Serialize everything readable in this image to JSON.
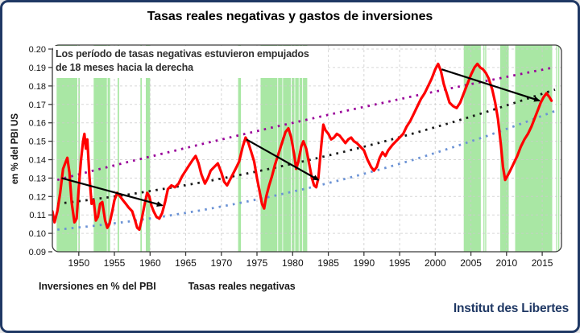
{
  "title": "Tasas reales negativas y gastos de inversiones",
  "annotation": {
    "line1": "Los período de tasas negativas estuvieron empujados",
    "line2": "de 18 meses hacia la derecha"
  },
  "brand": "Institut des Libertes",
  "legend": [
    {
      "label": "Inversiones en % del PBI",
      "color": "#FF0000",
      "type": "line"
    },
    {
      "label": "Tasas reales negativas",
      "color": "#A9E7A4",
      "type": "box"
    }
  ],
  "colors": {
    "investment_line": "#FF0000",
    "band_green": "#A9E7A4",
    "trend_purple": "#990099",
    "trend_black": "#1a1a1a",
    "trend_blue": "#6C93D5",
    "grid": "#cccccc",
    "frame": "#3a3a3a",
    "navy": "#1F3864"
  },
  "chart_data": {
    "type": "line",
    "title": "Tasas reales negativas y gastos de inversiones",
    "xlabel": "",
    "ylabel": "en % del PBI US",
    "xlim": [
      1946.3,
      2017.7
    ],
    "ylim": [
      0.09,
      0.2022
    ],
    "xticks": [
      1950,
      1955,
      1960,
      1965,
      1970,
      1975,
      1980,
      1985,
      1990,
      1995,
      2000,
      2005,
      2010,
      2015
    ],
    "yticks": [
      0.09,
      0.1,
      0.11,
      0.12,
      0.13,
      0.14,
      0.15,
      0.16,
      0.17,
      0.18,
      0.19,
      0.2
    ],
    "grid": true,
    "legend_position": "bottom-left",
    "series": [
      {
        "name": "Inversiones en % del PBI",
        "color": "#FF0000",
        "points": [
          [
            1946.3,
            0.112
          ],
          [
            1946.6,
            0.106
          ],
          [
            1947.0,
            0.112
          ],
          [
            1947.4,
            0.122
          ],
          [
            1947.8,
            0.135
          ],
          [
            1948.1,
            0.138
          ],
          [
            1948.4,
            0.141
          ],
          [
            1948.7,
            0.133
          ],
          [
            1949.0,
            0.117
          ],
          [
            1949.4,
            0.106
          ],
          [
            1949.7,
            0.108
          ],
          [
            1950.0,
            0.125
          ],
          [
            1950.3,
            0.139
          ],
          [
            1950.6,
            0.15
          ],
          [
            1950.8,
            0.154
          ],
          [
            1951.0,
            0.146
          ],
          [
            1951.2,
            0.151
          ],
          [
            1951.5,
            0.131
          ],
          [
            1951.8,
            0.116
          ],
          [
            1952.1,
            0.118
          ],
          [
            1952.4,
            0.107
          ],
          [
            1952.7,
            0.109
          ],
          [
            1953.0,
            0.116
          ],
          [
            1953.3,
            0.117
          ],
          [
            1953.7,
            0.107
          ],
          [
            1954.0,
            0.103
          ],
          [
            1954.3,
            0.105
          ],
          [
            1954.7,
            0.112
          ],
          [
            1955.0,
            0.118
          ],
          [
            1955.4,
            0.122
          ],
          [
            1955.8,
            0.12
          ],
          [
            1956.2,
            0.118
          ],
          [
            1956.6,
            0.116
          ],
          [
            1957.0,
            0.114
          ],
          [
            1957.5,
            0.112
          ],
          [
            1957.9,
            0.107
          ],
          [
            1958.2,
            0.103
          ],
          [
            1958.5,
            0.102
          ],
          [
            1958.8,
            0.107
          ],
          [
            1959.2,
            0.115
          ],
          [
            1959.6,
            0.122
          ],
          [
            1959.9,
            0.12
          ],
          [
            1960.2,
            0.115
          ],
          [
            1960.5,
            0.112
          ],
          [
            1960.9,
            0.109
          ],
          [
            1961.3,
            0.108
          ],
          [
            1961.7,
            0.111
          ],
          [
            1962.1,
            0.117
          ],
          [
            1962.5,
            0.124
          ],
          [
            1963.0,
            0.126
          ],
          [
            1963.5,
            0.125
          ],
          [
            1964.0,
            0.127
          ],
          [
            1964.5,
            0.131
          ],
          [
            1965.0,
            0.134
          ],
          [
            1965.5,
            0.137
          ],
          [
            1966.0,
            0.14
          ],
          [
            1966.4,
            0.142
          ],
          [
            1966.8,
            0.138
          ],
          [
            1967.2,
            0.132
          ],
          [
            1967.7,
            0.127
          ],
          [
            1968.1,
            0.13
          ],
          [
            1968.5,
            0.134
          ],
          [
            1969.0,
            0.136
          ],
          [
            1969.5,
            0.138
          ],
          [
            1970.0,
            0.133
          ],
          [
            1970.4,
            0.128
          ],
          [
            1970.8,
            0.126
          ],
          [
            1971.2,
            0.129
          ],
          [
            1971.6,
            0.132
          ],
          [
            1972.0,
            0.135
          ],
          [
            1972.5,
            0.139
          ],
          [
            1973.0,
            0.147
          ],
          [
            1973.4,
            0.152
          ],
          [
            1973.8,
            0.149
          ],
          [
            1974.2,
            0.144
          ],
          [
            1974.6,
            0.139
          ],
          [
            1975.0,
            0.13
          ],
          [
            1975.4,
            0.122
          ],
          [
            1975.7,
            0.116
          ],
          [
            1976.0,
            0.1135
          ],
          [
            1976.3,
            0.12
          ],
          [
            1976.7,
            0.126
          ],
          [
            1977.1,
            0.131
          ],
          [
            1977.5,
            0.137
          ],
          [
            1978.0,
            0.143
          ],
          [
            1978.5,
            0.149
          ],
          [
            1979.0,
            0.155
          ],
          [
            1979.4,
            0.157
          ],
          [
            1979.8,
            0.152
          ],
          [
            1980.2,
            0.143
          ],
          [
            1980.5,
            0.135
          ],
          [
            1980.8,
            0.139
          ],
          [
            1981.2,
            0.147
          ],
          [
            1981.5,
            0.15
          ],
          [
            1981.9,
            0.146
          ],
          [
            1982.3,
            0.138
          ],
          [
            1982.7,
            0.13
          ],
          [
            1983.0,
            0.126
          ],
          [
            1983.3,
            0.125
          ],
          [
            1983.6,
            0.13
          ],
          [
            1984.0,
            0.147
          ],
          [
            1984.3,
            0.159
          ],
          [
            1984.6,
            0.156
          ],
          [
            1985.0,
            0.154
          ],
          [
            1985.4,
            0.151
          ],
          [
            1985.8,
            0.152
          ],
          [
            1986.2,
            0.154
          ],
          [
            1986.6,
            0.153
          ],
          [
            1987.0,
            0.151
          ],
          [
            1987.4,
            0.149
          ],
          [
            1987.8,
            0.151
          ],
          [
            1988.2,
            0.152
          ],
          [
            1988.6,
            0.15
          ],
          [
            1989.0,
            0.149
          ],
          [
            1989.5,
            0.147
          ],
          [
            1990.0,
            0.145
          ],
          [
            1990.5,
            0.14
          ],
          [
            1991.0,
            0.136
          ],
          [
            1991.4,
            0.134
          ],
          [
            1991.8,
            0.136
          ],
          [
            1992.2,
            0.141
          ],
          [
            1992.6,
            0.144
          ],
          [
            1993.0,
            0.142
          ],
          [
            1993.4,
            0.145
          ],
          [
            1994.0,
            0.148
          ],
          [
            1994.5,
            0.15
          ],
          [
            1995.0,
            0.152
          ],
          [
            1995.5,
            0.154
          ],
          [
            1996.0,
            0.158
          ],
          [
            1996.5,
            0.161
          ],
          [
            1997.0,
            0.165
          ],
          [
            1997.5,
            0.169
          ],
          [
            1998.0,
            0.173
          ],
          [
            1998.5,
            0.176
          ],
          [
            1999.0,
            0.18
          ],
          [
            1999.5,
            0.184
          ],
          [
            2000.0,
            0.189
          ],
          [
            2000.4,
            0.192
          ],
          [
            2000.8,
            0.188
          ],
          [
            2001.2,
            0.181
          ],
          [
            2001.6,
            0.176
          ],
          [
            2002.0,
            0.171
          ],
          [
            2002.5,
            0.169
          ],
          [
            2003.0,
            0.168
          ],
          [
            2003.5,
            0.171
          ],
          [
            2004.0,
            0.176
          ],
          [
            2004.5,
            0.181
          ],
          [
            2005.0,
            0.186
          ],
          [
            2005.5,
            0.19
          ],
          [
            2005.9,
            0.192
          ],
          [
            2006.3,
            0.19
          ],
          [
            2006.7,
            0.189
          ],
          [
            2007.1,
            0.187
          ],
          [
            2007.5,
            0.184
          ],
          [
            2008.0,
            0.178
          ],
          [
            2008.4,
            0.171
          ],
          [
            2008.8,
            0.162
          ],
          [
            2009.2,
            0.148
          ],
          [
            2009.5,
            0.136
          ],
          [
            2009.8,
            0.129
          ],
          [
            2010.1,
            0.131
          ],
          [
            2010.5,
            0.134
          ],
          [
            2011.0,
            0.138
          ],
          [
            2011.5,
            0.142
          ],
          [
            2012.0,
            0.147
          ],
          [
            2012.5,
            0.151
          ],
          [
            2013.0,
            0.154
          ],
          [
            2013.5,
            0.158
          ],
          [
            2014.0,
            0.163
          ],
          [
            2014.4,
            0.167
          ],
          [
            2014.8,
            0.171
          ],
          [
            2015.2,
            0.174
          ],
          [
            2015.6,
            0.176
          ],
          [
            2016.0,
            0.174
          ],
          [
            2016.3,
            0.172
          ]
        ]
      }
    ],
    "trend_lines": [
      {
        "name": "trend-line-purple",
        "color": "#990099",
        "points": [
          [
            1947,
            0.129
          ],
          [
            1952,
            0.134
          ],
          [
            1957,
            0.1388
          ],
          [
            1962,
            0.1435
          ],
          [
            1967,
            0.1482
          ],
          [
            1972,
            0.1528
          ],
          [
            1977,
            0.1573
          ],
          [
            1982,
            0.1617
          ],
          [
            1987,
            0.1661
          ],
          [
            1992,
            0.1703
          ],
          [
            1997,
            0.1745
          ],
          [
            2002,
            0.1786
          ],
          [
            2007,
            0.1826
          ],
          [
            2012,
            0.1865
          ],
          [
            2016.8,
            0.1902
          ]
        ]
      },
      {
        "name": "trend-line-black",
        "color": "#1a1a1a",
        "points": [
          [
            1947,
            0.116
          ],
          [
            1952,
            0.1184
          ],
          [
            1957,
            0.1211
          ],
          [
            1962,
            0.1242
          ],
          [
            1967,
            0.1275
          ],
          [
            1972,
            0.1312
          ],
          [
            1977,
            0.1352
          ],
          [
            1982,
            0.1395
          ],
          [
            1987,
            0.1441
          ],
          [
            1992,
            0.149
          ],
          [
            1997,
            0.1543
          ],
          [
            2002,
            0.1598
          ],
          [
            2007,
            0.1657
          ],
          [
            2012,
            0.1719
          ],
          [
            2016.8,
            0.178
          ]
        ]
      },
      {
        "name": "trend-line-blue",
        "color": "#6C93D5",
        "points": [
          [
            1947,
            0.102
          ],
          [
            1952,
            0.104
          ],
          [
            1957,
            0.1064
          ],
          [
            1962,
            0.1092
          ],
          [
            1967,
            0.1124
          ],
          [
            1972,
            0.116
          ],
          [
            1977,
            0.12
          ],
          [
            1982,
            0.1244
          ],
          [
            1987,
            0.1292
          ],
          [
            1992,
            0.1344
          ],
          [
            1997,
            0.14
          ],
          [
            2002,
            0.1461
          ],
          [
            2007,
            0.1525
          ],
          [
            2012,
            0.1594
          ],
          [
            2016.8,
            0.1664
          ]
        ]
      }
    ],
    "bands": {
      "name": "Tasas reales negativas",
      "color": "#A9E7A4",
      "ranges": [
        [
          1946.9,
          1949.8
        ],
        [
          1949.95,
          1950.15
        ],
        [
          1952.1,
          1953.95
        ],
        [
          1954.05,
          1954.4
        ],
        [
          1955.45,
          1955.65
        ],
        [
          1958.65,
          1958.85
        ],
        [
          1959.4,
          1960.0
        ],
        [
          1972.35,
          1972.75
        ],
        [
          1975.5,
          1977.85
        ],
        [
          1977.95,
          1978.55
        ],
        [
          1978.65,
          1979.75
        ],
        [
          1979.85,
          1980.25
        ],
        [
          1980.35,
          1980.85
        ],
        [
          1980.95,
          1981.35
        ],
        [
          1981.45,
          1982.05
        ],
        [
          2004.0,
          2006.4
        ],
        [
          2006.75,
          2006.9
        ],
        [
          2007.0,
          2007.15
        ],
        [
          2009.1,
          2010.3
        ],
        [
          2011.2,
          2016.4
        ],
        [
          2016.95,
          2017.1
        ],
        [
          2017.25,
          2017.4
        ]
      ]
    },
    "arrows": [
      {
        "from": [
          1947.6,
          0.13
        ],
        "to": [
          1961.7,
          0.1152
        ]
      },
      {
        "from": [
          1973.5,
          0.151
        ],
        "to": [
          1983.6,
          0.129
        ]
      },
      {
        "from": [
          2000.9,
          0.189
        ],
        "to": [
          2014.6,
          0.172
        ]
      }
    ]
  }
}
